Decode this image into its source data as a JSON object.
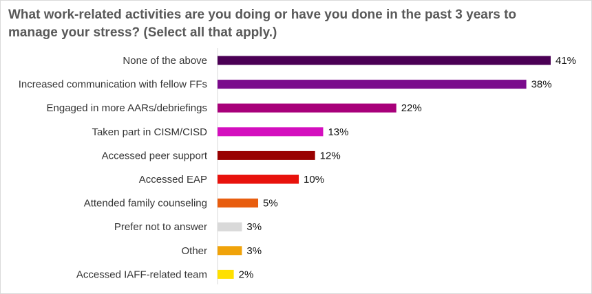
{
  "title": "What work-related activities are you doing or have you done in the past 3 years to manage your stress? (Select all that apply.)",
  "chart_data": {
    "type": "bar",
    "orientation": "horizontal",
    "title": "What work-related activities are you doing or have you done in the past 3 years to manage your stress? (Select all that apply.)",
    "categories": [
      "None of the above",
      "Increased communication with fellow FFs",
      "Engaged in more AARs/debriefings",
      "Taken part in CISM/CISD",
      "Accessed peer support",
      "Accessed EAP",
      "Attended family counseling",
      "Prefer not to answer",
      "Other",
      "Accessed IAFF-related team"
    ],
    "values": [
      41,
      38,
      22,
      13,
      12,
      10,
      5,
      3,
      3,
      2
    ],
    "value_labels": [
      "41%",
      "38%",
      "22%",
      "13%",
      "12%",
      "10%",
      "5%",
      "3%",
      "3%",
      "2%"
    ],
    "colors": [
      "#4b0055",
      "#7a0a8c",
      "#a8007a",
      "#d40fbe",
      "#990000",
      "#e8120c",
      "#e85d0e",
      "#d9d9d9",
      "#f0a30a",
      "#ffe000"
    ],
    "xlabel": "",
    "ylabel": "",
    "xlim": [
      0,
      41
    ],
    "grid": false,
    "legend": "none"
  }
}
